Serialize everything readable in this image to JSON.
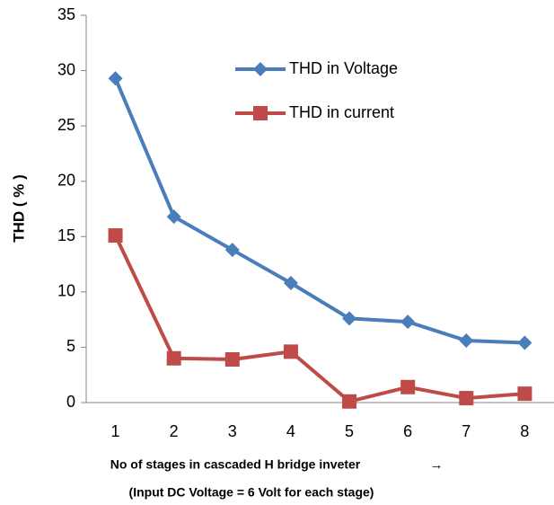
{
  "chart_data": {
    "type": "line",
    "y_label": "THD  ( % )",
    "x_label": [
      "No of stages in cascaded H bridge inveter",
      "(Input DC Voltage = 6 Volt for each stage)"
    ],
    "x_label_arrow": "→",
    "categories": [
      "1",
      "2",
      "3",
      "4",
      "5",
      "6",
      "7",
      "8"
    ],
    "series": [
      {
        "name": "THD in Voltage",
        "color": "#4a7ebb",
        "marker": "diamond",
        "values": [
          29.3,
          16.8,
          13.8,
          10.8,
          7.6,
          7.3,
          5.6,
          5.4
        ]
      },
      {
        "name": "THD  in current",
        "color": "#be4b48",
        "marker": "square",
        "values": [
          15.1,
          4.0,
          3.9,
          4.6,
          0.1,
          1.4,
          0.4,
          0.8
        ]
      }
    ],
    "ylim": [
      0,
      35
    ],
    "yticks": [
      0,
      5,
      10,
      15,
      20,
      25,
      30,
      35
    ],
    "grid": false,
    "legend": "top"
  }
}
